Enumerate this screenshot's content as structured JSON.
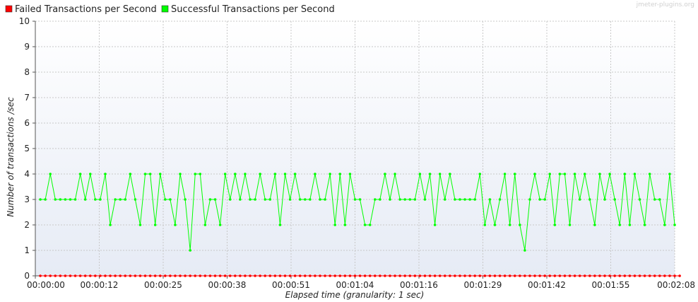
{
  "watermark": "jmeter-plugins.org",
  "colors": {
    "failed": "#ff0000",
    "successful": "#00ff00",
    "grid": "#c8c8c8",
    "plot_bg_top": "#ffffff",
    "plot_bg_bottom": "#e6ebf5"
  },
  "chart_data": {
    "type": "line",
    "title": "",
    "xlabel": "Elapsed time (granularity: 1 sec)",
    "ylabel": "Number of transactions /sec",
    "ylim": [
      0,
      10
    ],
    "xlim_seconds": [
      0,
      128
    ],
    "y_ticks": [
      "0",
      "1",
      "2",
      "3",
      "4",
      "5",
      "6",
      "7",
      "8",
      "9",
      "10"
    ],
    "x_ticks": [
      "00:00:00",
      "00:00:12",
      "00:00:25",
      "00:00:38",
      "00:00:51",
      "00:01:04",
      "00:01:16",
      "00:01:29",
      "00:01:42",
      "00:01:55",
      "00:02:08"
    ],
    "grid": true,
    "legend": "top-left",
    "series": [
      {
        "name": "Failed Transactions per Second",
        "color": "#ff0000",
        "values": [
          0,
          0,
          0,
          0,
          0,
          0,
          0,
          0,
          0,
          0,
          0,
          0,
          0,
          0,
          0,
          0,
          0,
          0,
          0,
          0,
          0,
          0,
          0,
          0,
          0,
          0,
          0,
          0,
          0,
          0,
          0,
          0,
          0,
          0,
          0,
          0,
          0,
          0,
          0,
          0,
          0,
          0,
          0,
          0,
          0,
          0,
          0,
          0,
          0,
          0,
          0,
          0,
          0,
          0,
          0,
          0,
          0,
          0,
          0,
          0,
          0,
          0,
          0,
          0,
          0,
          0,
          0,
          0,
          0,
          0,
          0,
          0,
          0,
          0,
          0,
          0,
          0,
          0,
          0,
          0,
          0,
          0,
          0,
          0,
          0,
          0,
          0,
          0,
          0,
          0,
          0,
          0,
          0,
          0,
          0,
          0,
          0,
          0,
          0,
          0,
          0,
          0,
          0,
          0,
          0,
          0,
          0,
          0,
          0,
          0,
          0,
          0,
          0,
          0,
          0,
          0,
          0,
          0,
          0,
          0,
          0,
          0,
          0,
          0,
          0,
          0,
          0,
          0,
          0
        ]
      },
      {
        "name": "Successful Transactions per Second",
        "color": "#00ff00",
        "values": [
          3,
          3,
          4,
          3,
          3,
          3,
          3,
          3,
          4,
          3,
          4,
          3,
          3,
          4,
          2,
          3,
          3,
          3,
          4,
          3,
          2,
          4,
          4,
          2,
          4,
          3,
          3,
          2,
          4,
          3,
          1,
          4,
          4,
          2,
          3,
          3,
          2,
          4,
          3,
          4,
          3,
          4,
          3,
          3,
          4,
          3,
          3,
          4,
          2,
          4,
          3,
          4,
          3,
          3,
          3,
          4,
          3,
          3,
          4,
          2,
          4,
          2,
          4,
          3,
          3,
          2,
          2,
          3,
          3,
          4,
          3,
          4,
          3,
          3,
          3,
          3,
          4,
          3,
          4,
          2,
          4,
          3,
          4,
          3,
          3,
          3,
          3,
          3,
          4,
          2,
          3,
          2,
          3,
          4,
          2,
          4,
          2,
          1,
          3,
          4,
          3,
          3,
          4,
          2,
          4,
          4,
          2,
          4,
          3,
          4,
          3,
          2,
          4,
          3,
          4,
          3,
          2,
          4,
          2,
          4,
          3,
          2,
          4,
          3,
          3,
          2,
          4,
          2
        ]
      }
    ]
  }
}
